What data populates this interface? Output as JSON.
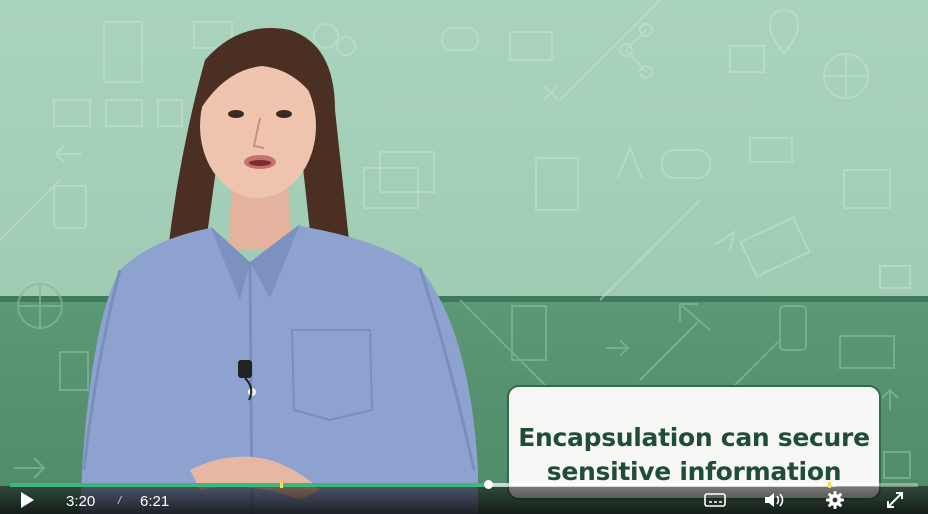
{
  "video": {
    "caption": "Encapsulation can secure sensitive information",
    "progress_fraction": 0.526,
    "buffered_fraction": 0.91
  },
  "controls": {
    "current_time": "3:20",
    "separator": "/",
    "duration": "6:21",
    "icons": {
      "play": "play-icon",
      "captions": "closed-captions-icon",
      "volume": "volume-icon",
      "settings": "gear-icon",
      "fullscreen": "fullscreen-icon"
    }
  },
  "colors": {
    "progress": "#3db87a",
    "marker": "#f5e14a",
    "caption_text": "#1f4d36",
    "caption_border": "#2f6b4c"
  }
}
